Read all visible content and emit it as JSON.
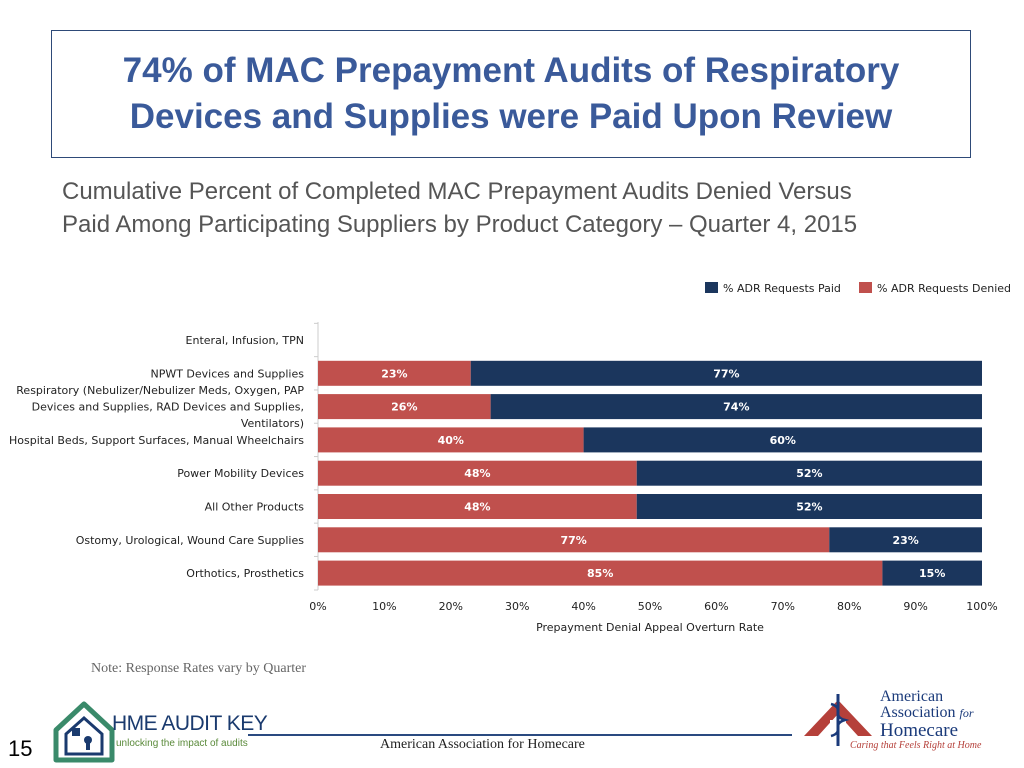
{
  "title": {
    "line1": "74% of MAC Prepayment Audits of Respiratory",
    "line2": "Devices and Supplies were Paid Upon Review"
  },
  "subtitle": {
    "line1": "Cumulative Percent of Completed MAC Prepayment Audits Denied Versus",
    "line2": "Paid Among Participating Suppliers by Product Category – Quarter 4, 2015"
  },
  "note": "Note: Response Rates vary by Quarter",
  "footer": {
    "text": "American Association for Homecare",
    "page_number": "15"
  },
  "left_logo": {
    "title": "HME AUDIT KEY",
    "tagline": "unlocking the impact of audits"
  },
  "right_logo": {
    "line1": "American",
    "line2": "Association",
    "line2_for": "for",
    "line3": "Homecare",
    "tagline": "Caring that Feels Right at Home"
  },
  "colors": {
    "paid": "#1b365d",
    "denied": "#c0504d",
    "title": "#3a5a9a"
  },
  "chart_data": {
    "type": "bar",
    "orientation": "horizontal",
    "stacked": true,
    "xlabel": "Prepayment Denial Appeal Overturn Rate",
    "xlim": [
      0,
      100
    ],
    "xticks": [
      "0%",
      "10%",
      "20%",
      "30%",
      "40%",
      "50%",
      "60%",
      "70%",
      "80%",
      "90%",
      "100%"
    ],
    "legend_position": "top-right",
    "categories": [
      [
        "Enteral, Infusion, TPN"
      ],
      [
        "NPWT Devices and Supplies"
      ],
      [
        "Respiratory (Nebulizer/Nebulizer Meds, Oxygen, PAP",
        "Devices and Supplies, RAD Devices and Supplies,",
        "Ventilators)"
      ],
      [
        "Hospital Beds, Support Surfaces, Manual Wheelchairs"
      ],
      [
        "Power Mobility Devices"
      ],
      [
        "All Other Products"
      ],
      [
        "Ostomy, Urological, Wound Care Supplies"
      ],
      [
        "Orthotics, Prosthetics"
      ]
    ],
    "series": [
      {
        "name": "% ADR Requests Denied",
        "values": [
          null,
          23,
          26,
          40,
          48,
          48,
          77,
          85
        ],
        "labels": [
          "",
          "23%",
          "26%",
          "40%",
          "48%",
          "48%",
          "77%",
          "85%"
        ]
      },
      {
        "name": "% ADR Requests Paid",
        "values": [
          null,
          77,
          74,
          60,
          52,
          52,
          23,
          15
        ],
        "labels": [
          "",
          "77%",
          "74%",
          "60%",
          "52%",
          "52%",
          "23%",
          "15%"
        ]
      }
    ],
    "legend": [
      "% ADR Requests Paid",
      "% ADR Requests Denied"
    ]
  }
}
